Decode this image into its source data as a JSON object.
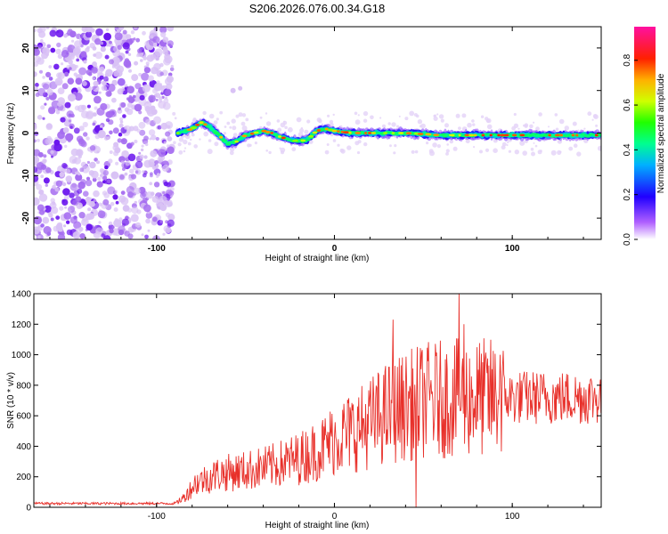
{
  "figure": {
    "title": "S206.2026.076.00.34.G18"
  },
  "chart_data": [
    {
      "type": "heatmap",
      "title": "S206.2026.076.00.34.G18",
      "xlabel": "Height of straight line (km)",
      "ylabel": "Frequency (Hz)",
      "xlim": [
        -169,
        150
      ],
      "ylim": [
        -25,
        25
      ],
      "x_ticks": [
        -100,
        0,
        100
      ],
      "x_tick_labels": [
        "-100",
        "0",
        "100"
      ],
      "y_ticks": [
        -20,
        -10,
        0,
        10,
        20
      ],
      "y_tick_labels": [
        "-20",
        "-10",
        "0",
        "10",
        "20"
      ],
      "colorbar": {
        "label": "Normalized spectral amplitude",
        "range": [
          0,
          0.95
        ],
        "ticks": [
          0.0,
          0.2,
          0.4,
          0.6,
          0.8
        ],
        "tick_labels": [
          "0.0",
          "0.2",
          "0.4",
          "0.6",
          "0.8"
        ],
        "colormap": "rainbow (white-violet-blue-cyan-green-yellow-red-magenta)"
      },
      "description_of_content": {
        "noise_region_x_range": [
          -169,
          -91
        ],
        "ridge_track": [
          {
            "x": -88,
            "freq": 0.0
          },
          {
            "x": -80,
            "freq": 1.0
          },
          {
            "x": -75,
            "freq": 2.5
          },
          {
            "x": -70,
            "freq": 1.5
          },
          {
            "x": -65,
            "freq": -0.5
          },
          {
            "x": -60,
            "freq": -2.5
          },
          {
            "x": -55,
            "freq": -2.0
          },
          {
            "x": -50,
            "freq": -0.5
          },
          {
            "x": -45,
            "freq": 0.0
          },
          {
            "x": -40,
            "freq": 0.5
          },
          {
            "x": -35,
            "freq": 0.0
          },
          {
            "x": -30,
            "freq": -1.0
          },
          {
            "x": -25,
            "freq": -1.5
          },
          {
            "x": -20,
            "freq": -2.0
          },
          {
            "x": -15,
            "freq": -1.5
          },
          {
            "x": -10,
            "freq": 0.5
          },
          {
            "x": -5,
            "freq": 1.0
          },
          {
            "x": 0,
            "freq": 0.5
          },
          {
            "x": 10,
            "freq": 0.0
          },
          {
            "x": 20,
            "freq": 0.0
          },
          {
            "x": 40,
            "freq": 0.0
          },
          {
            "x": 60,
            "freq": -0.5
          },
          {
            "x": 80,
            "freq": -0.5
          },
          {
            "x": 100,
            "freq": -0.5
          },
          {
            "x": 120,
            "freq": -0.5
          },
          {
            "x": 150,
            "freq": -0.5
          }
        ]
      }
    },
    {
      "type": "line",
      "title": "",
      "xlabel": "Height of straight line (km)",
      "ylabel": "SNR (10 * v/v)",
      "xlim": [
        -169,
        150
      ],
      "ylim": [
        0,
        1400
      ],
      "x_ticks": [
        -100,
        0,
        100
      ],
      "x_tick_labels": [
        "-100",
        "0",
        "100"
      ],
      "y_ticks": [
        0,
        200,
        400,
        600,
        800,
        1000,
        1200,
        1400
      ],
      "y_tick_labels": [
        "0",
        "200",
        "400",
        "600",
        "800",
        "1000",
        "1200",
        "1400"
      ],
      "series": [
        {
          "name": "SNR",
          "color": "#e8302a",
          "envelope_mean": [
            {
              "x": -169,
              "y": 25
            },
            {
              "x": -90,
              "y": 25
            },
            {
              "x": -85,
              "y": 60
            },
            {
              "x": -78,
              "y": 160
            },
            {
              "x": -65,
              "y": 220
            },
            {
              "x": -50,
              "y": 240
            },
            {
              "x": -35,
              "y": 270
            },
            {
              "x": -20,
              "y": 320
            },
            {
              "x": -8,
              "y": 380
            },
            {
              "x": 0,
              "y": 450
            },
            {
              "x": 15,
              "y": 520
            },
            {
              "x": 30,
              "y": 620
            },
            {
              "x": 50,
              "y": 700
            },
            {
              "x": 75,
              "y": 720
            },
            {
              "x": 100,
              "y": 720
            },
            {
              "x": 125,
              "y": 720
            },
            {
              "x": 150,
              "y": 720
            }
          ],
          "notable_peaks": [
            {
              "x": 33,
              "y": 1230
            },
            {
              "x": 70,
              "y": 1400
            },
            {
              "x": 73,
              "y": 1200
            },
            {
              "x": 93,
              "y": 1000
            },
            {
              "x": 46,
              "y": 0
            }
          ]
        }
      ]
    }
  ]
}
